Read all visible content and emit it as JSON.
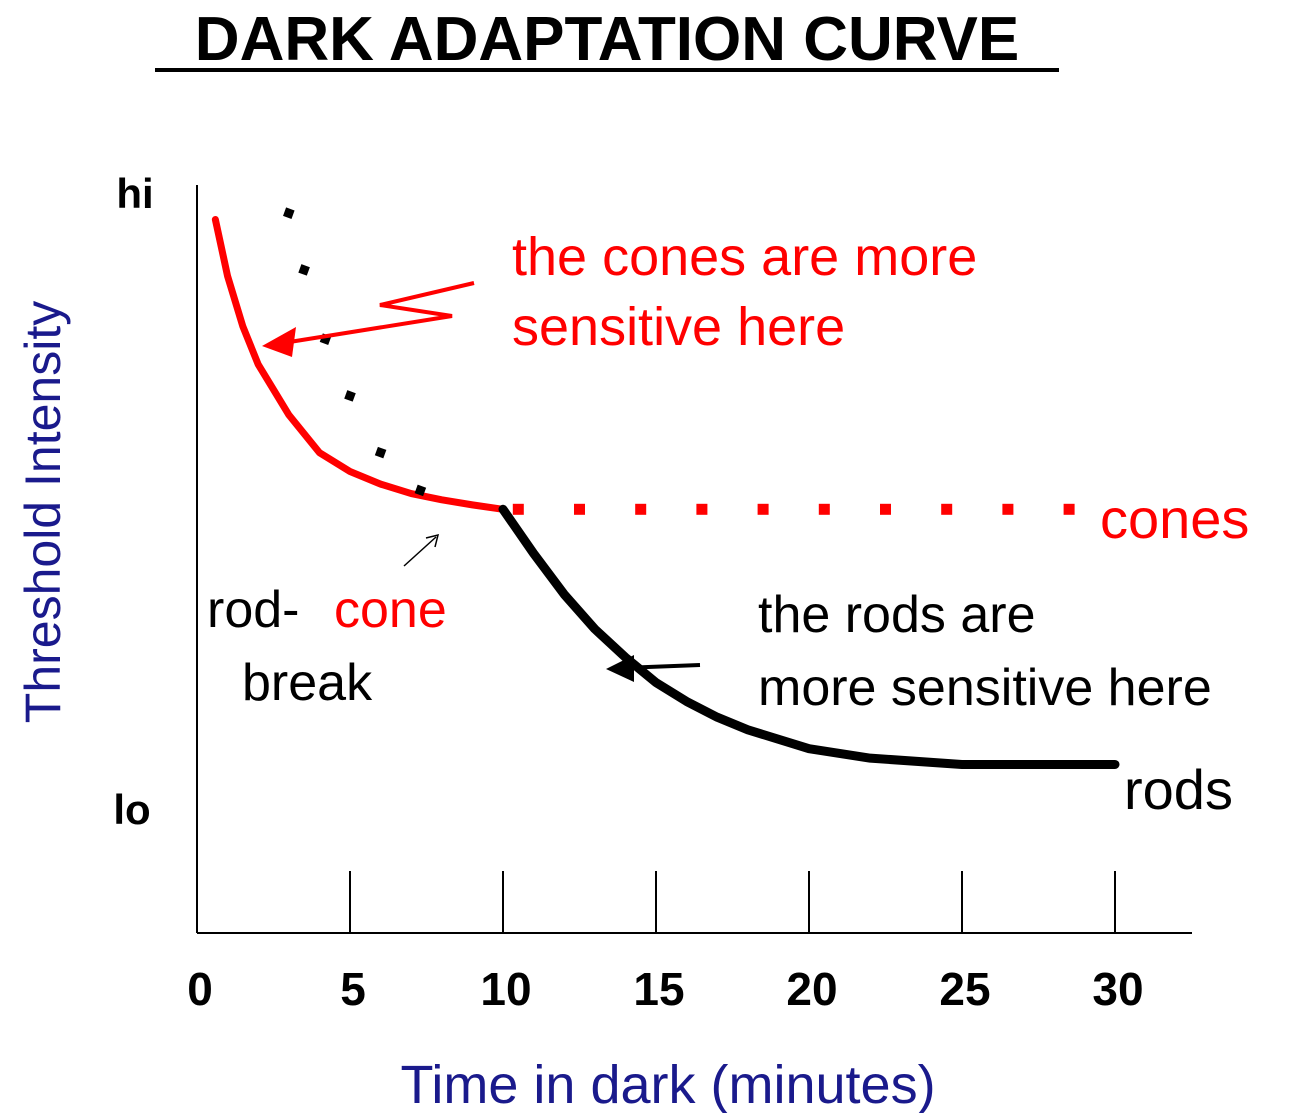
{
  "chart_data": {
    "type": "line",
    "title": "DARK ADAPTATION CURVE",
    "xlabel": "Time in dark (minutes)",
    "ylabel": "Threshold Intensity",
    "x_ticks": [
      "0",
      "5",
      "10",
      "15",
      "20",
      "25",
      "30"
    ],
    "y_ticks": [
      "hi",
      "lo"
    ],
    "xlim": [
      0,
      32
    ],
    "ylim": [
      0,
      1
    ],
    "series": [
      {
        "name": "cones",
        "color": "#ff0000",
        "style": "solid",
        "points": [
          [
            0.6,
            0.95
          ],
          [
            1,
            0.86
          ],
          [
            1.5,
            0.78
          ],
          [
            2,
            0.72
          ],
          [
            3,
            0.64
          ],
          [
            4,
            0.58
          ],
          [
            5,
            0.55
          ],
          [
            6,
            0.53
          ],
          [
            7,
            0.515
          ],
          [
            8,
            0.505
          ],
          [
            9,
            0.497
          ],
          [
            10,
            0.49
          ]
        ]
      },
      {
        "name": "cones",
        "color": "#ff0000",
        "style": "dotted",
        "points": [
          [
            10.5,
            0.49
          ],
          [
            12.5,
            0.49
          ],
          [
            14.5,
            0.49
          ],
          [
            16.5,
            0.49
          ],
          [
            18.5,
            0.49
          ],
          [
            20.5,
            0.49
          ],
          [
            22.5,
            0.49
          ],
          [
            24.5,
            0.49
          ],
          [
            26.5,
            0.49
          ],
          [
            28.5,
            0.49
          ]
        ]
      },
      {
        "name": "rods",
        "color": "#000000",
        "style": "solid",
        "points": [
          [
            10,
            0.49
          ],
          [
            11,
            0.42
          ],
          [
            12,
            0.355
          ],
          [
            13,
            0.3
          ],
          [
            14,
            0.255
          ],
          [
            15,
            0.215
          ],
          [
            16,
            0.185
          ],
          [
            17,
            0.16
          ],
          [
            18,
            0.14
          ],
          [
            20,
            0.11
          ],
          [
            22,
            0.095
          ],
          [
            25,
            0.085
          ],
          [
            28,
            0.085
          ],
          [
            30,
            0.085
          ]
        ]
      },
      {
        "name": "",
        "color": "#000000",
        "style": "dotted",
        "points": [
          [
            3,
            0.96
          ],
          [
            3.5,
            0.87
          ],
          [
            4.2,
            0.76
          ],
          [
            5,
            0.67
          ],
          [
            6,
            0.58
          ],
          [
            7.3,
            0.52
          ]
        ]
      }
    ],
    "annotations": {
      "cones_sensitive_line1": "the cones are more",
      "cones_sensitive_line2": "sensitive here",
      "cones_label": "cones",
      "rods_label": "rods",
      "rods_sensitive_line1": "the rods are",
      "rods_sensitive_line2": "more sensitive here",
      "rod_cone_part1": "rod-",
      "rod_cone_part2": "cone",
      "rod_cone_part3": "break"
    },
    "colors": {
      "cones": "#ff0000",
      "rods": "#000000",
      "axis_label": "#1a1a8c",
      "title": "#000000"
    }
  }
}
